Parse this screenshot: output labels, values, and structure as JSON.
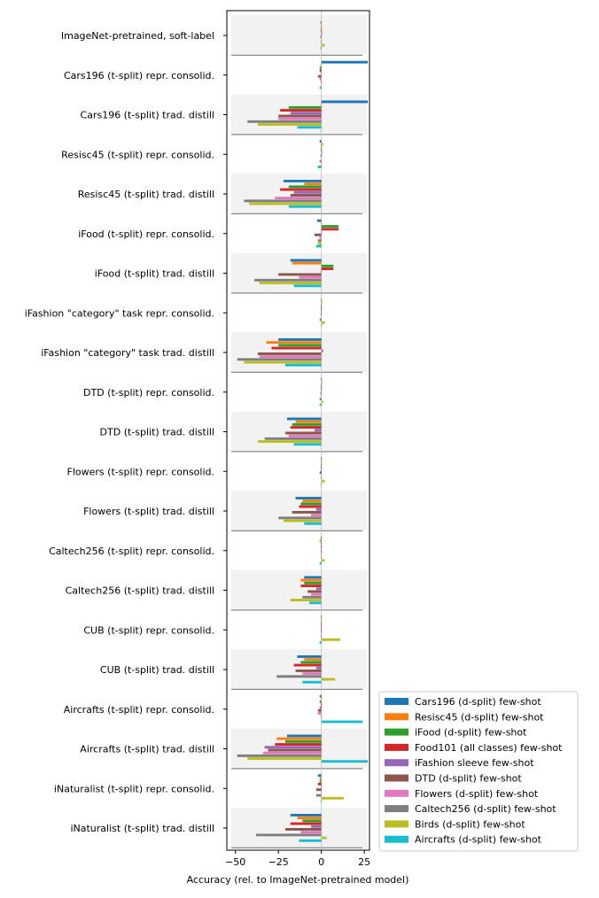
{
  "chart_data": {
    "type": "bar",
    "orientation": "horizontal",
    "xlabel": "Accuracy (rel. to ImageNet-pretrained model)",
    "xlim": [
      -55,
      28
    ],
    "xticks": [
      -50,
      -25,
      0,
      25
    ],
    "xtick_labels": [
      "−50",
      "−25",
      "0",
      "25"
    ],
    "legend_position": "lower-right, outside plot area",
    "series_colors": [
      "#1f77b4",
      "#ff7f0e",
      "#2ca02c",
      "#d62728",
      "#9467bd",
      "#8c564b",
      "#e377c2",
      "#7f7f7f",
      "#bcbd22",
      "#17becf"
    ],
    "shaded_group_color": "#f2f2f2",
    "categories": [
      "ImageNet-pretrained, soft-label",
      "Cars196 (t-split) repr. consolid.",
      "Cars196 (t-split) trad. distill",
      "Resisc45 (t-split) repr. consolid.",
      "Resisc45 (t-split) trad. distill",
      "iFood (t-split) repr. consolid.",
      "iFood (t-split) trad. distill",
      "iFashion \"category\" task repr. consolid.",
      "iFashion \"category\" task trad. distill",
      "DTD (t-split) repr. consolid.",
      "DTD (t-split) trad. distill",
      "Flowers (t-split) repr. consolid.",
      "Flowers (t-split) trad. distill",
      "Caltech256 (t-split) repr. consolid.",
      "Caltech256 (t-split) trad. distill",
      "CUB (t-split) repr. consolid.",
      "CUB (t-split) trad. distill",
      "Aircrafts (t-split) repr. consolid.",
      "Aircrafts (t-split) trad. distill",
      "iNaturalist (t-split) repr. consolid.",
      "iNaturalist (t-split) trad. distill"
    ],
    "shaded_groups": [
      true,
      false,
      true,
      false,
      true,
      false,
      true,
      false,
      true,
      false,
      true,
      false,
      true,
      false,
      true,
      false,
      true,
      false,
      true,
      false,
      true
    ],
    "series": [
      {
        "name": "Cars196 (d-split) few-shot",
        "values": [
          -0.5,
          27,
          27,
          -1,
          -22,
          -2.5,
          -18,
          0,
          -25,
          0,
          -20,
          0,
          -15,
          0,
          -10,
          0,
          -14,
          -1,
          -20,
          -2,
          -18
        ]
      },
      {
        "name": "Resisc45 (d-split) few-shot",
        "values": [
          0,
          0,
          0,
          1,
          -10,
          0,
          -17,
          0.5,
          -32,
          0.5,
          -15,
          0,
          -11,
          -1,
          -12,
          0,
          -10,
          0,
          -26,
          -1,
          -14
        ]
      },
      {
        "name": "iFood (d-split) few-shot",
        "values": [
          0,
          -1,
          -19,
          0,
          -19,
          10,
          7,
          0,
          -25,
          0,
          -17,
          0,
          -12,
          0,
          -10,
          0,
          -12,
          -1,
          -21,
          -1,
          -11
        ]
      },
      {
        "name": "Food101 (all classes) few-shot",
        "values": [
          0,
          -1,
          -24,
          0,
          -24,
          10,
          7,
          0,
          -29,
          0,
          -18,
          0,
          -13,
          0,
          -12,
          0,
          -16,
          0,
          -27,
          -2,
          -18
        ]
      },
      {
        "name": "iFashion sleeve few-shot",
        "values": [
          0.5,
          0,
          -18,
          0.5,
          -16,
          0,
          0,
          0,
          1,
          0,
          -4,
          0,
          -3,
          0,
          -3,
          0,
          -3,
          -1,
          -33,
          0,
          -6
        ]
      },
      {
        "name": "DTD (d-split) few-shot",
        "values": [
          -0.5,
          -2,
          -25,
          -0.5,
          -18,
          -4,
          -25,
          0,
          -37,
          -0.5,
          -21,
          -1,
          -17,
          0,
          -8,
          0,
          -15,
          -2,
          -31,
          -3,
          -21
        ]
      },
      {
        "name": "Flowers (d-split) few-shot",
        "values": [
          0,
          -1,
          -25,
          0,
          -27,
          -1,
          -13,
          0,
          -36,
          0,
          -19,
          0,
          -6,
          0,
          -6,
          0,
          -11,
          -2,
          -34,
          0,
          -12
        ]
      },
      {
        "name": "Caltech256 (d-split) few-shot",
        "values": [
          0,
          0,
          -43,
          -1,
          -45,
          -2,
          -39,
          -1,
          -49,
          -1,
          -33,
          0,
          -25,
          0,
          -11,
          0,
          -26,
          0,
          -49,
          -3,
          -38
        ]
      },
      {
        "name": "Birds (d-split) few-shot",
        "values": [
          2,
          0,
          -37,
          0,
          -42,
          -2,
          -36,
          2,
          -45,
          1,
          -37,
          2,
          -22,
          2,
          -18,
          11,
          8,
          0,
          -43,
          13,
          3
        ]
      },
      {
        "name": "Aircrafts (d-split) few-shot",
        "values": [
          -0.5,
          -1,
          -14,
          -2,
          -19,
          -3,
          -16,
          0,
          -21,
          -1,
          -16,
          0,
          -10,
          -1,
          -7,
          -1,
          -11,
          24,
          27,
          0,
          -13
        ]
      }
    ]
  }
}
